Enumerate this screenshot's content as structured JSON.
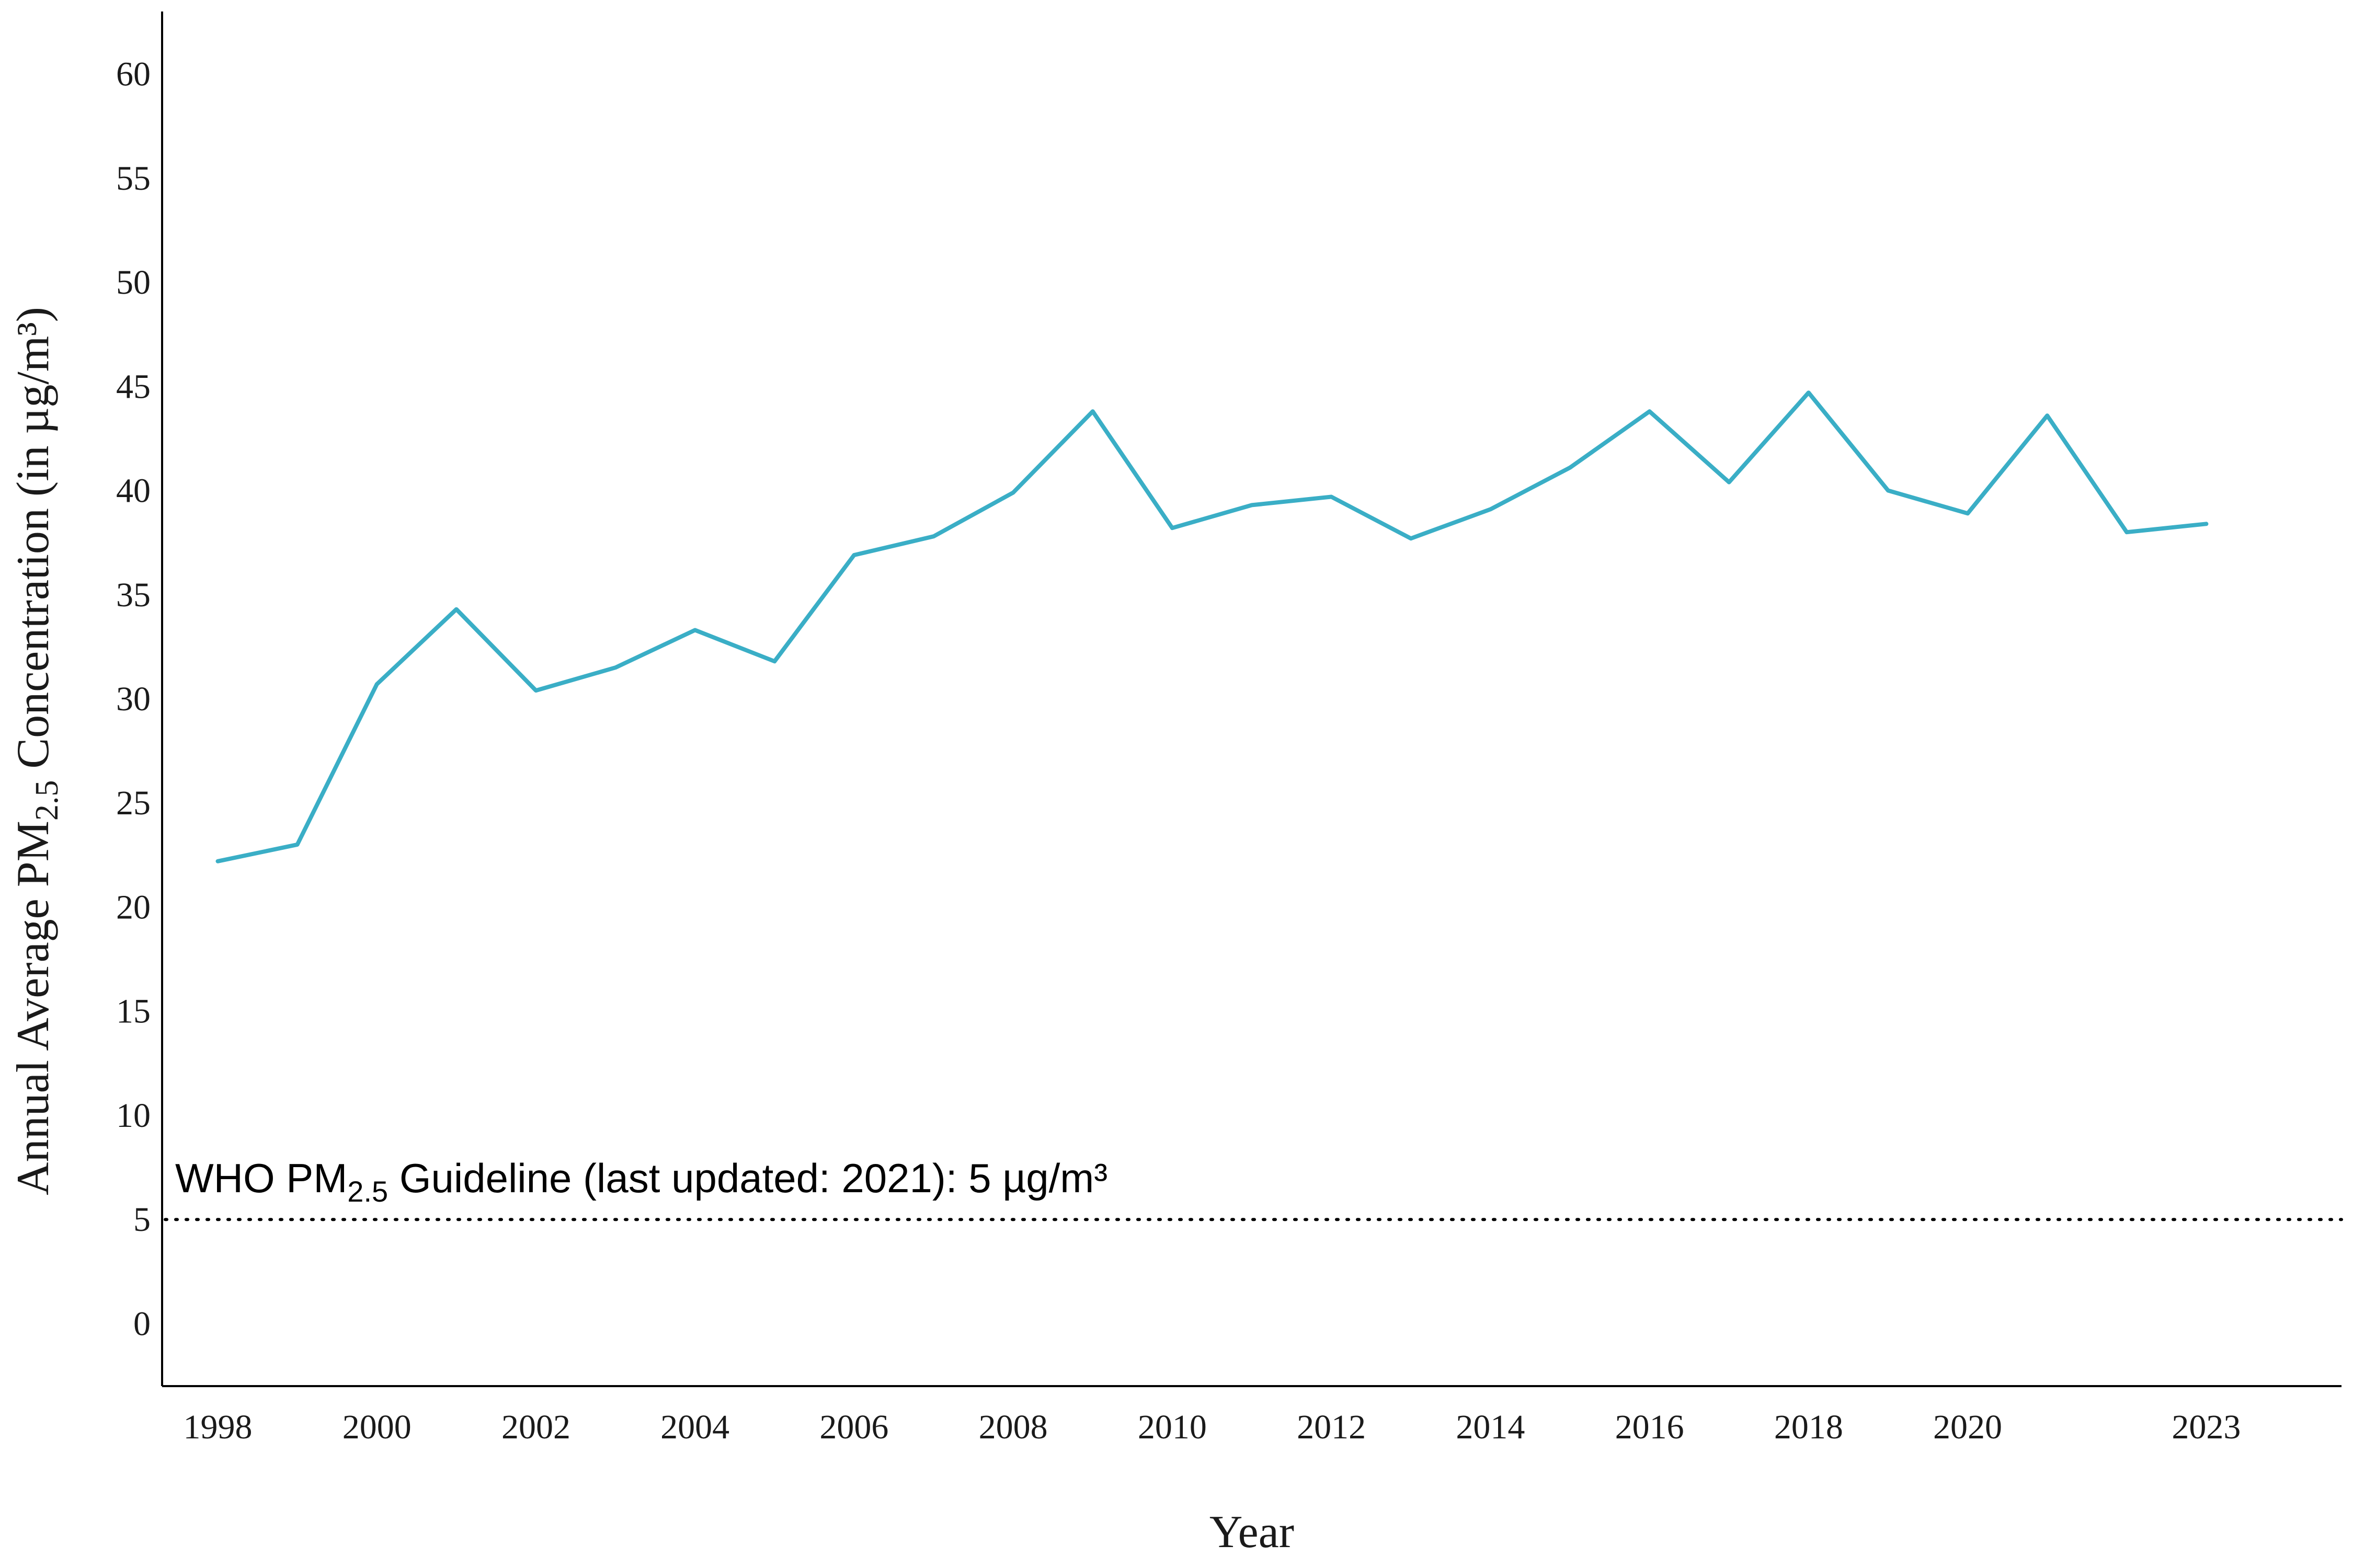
{
  "chart_data": {
    "type": "line",
    "xlabel": "Year",
    "ylabel": {
      "prefix": "Annual Average PM",
      "subscript": "2.5",
      "suffix": " Concentration (in µg/m³)"
    },
    "x_ticks": [
      "1998",
      "2000",
      "2002",
      "2004",
      "2006",
      "2008",
      "2010",
      "2012",
      "2014",
      "2016",
      "2018",
      "2020",
      "2023"
    ],
    "y_ticks": [
      "0",
      "5",
      "10",
      "15",
      "20",
      "25",
      "30",
      "35",
      "40",
      "45",
      "50",
      "55",
      "60"
    ],
    "xlim": [
      1997.3,
      2024.7
    ],
    "ylim": [
      -3,
      63
    ],
    "grid": false,
    "series": [
      {
        "color": "#3aaec6",
        "x": [
          1998,
          1999,
          2000,
          2001,
          2002,
          2003,
          2004,
          2005,
          2006,
          2007,
          2008,
          2009,
          2010,
          2011,
          2012,
          2013,
          2014,
          2015,
          2016,
          2017,
          2018,
          2019,
          2020,
          2021,
          2022,
          2023
        ],
        "y": [
          22.2,
          23.0,
          30.7,
          34.3,
          30.4,
          31.5,
          33.3,
          31.8,
          36.9,
          37.8,
          39.9,
          43.8,
          38.2,
          39.3,
          39.7,
          37.7,
          39.1,
          41.1,
          43.8,
          40.4,
          44.7,
          40.0,
          38.9,
          43.6,
          38.0,
          38.4
        ]
      }
    ],
    "reference_line": {
      "y": 5,
      "style": "dotted",
      "color": "#000000",
      "label": {
        "prefix": "WHO PM",
        "subscript": "2.5",
        "suffix": " Guideline (last updated: 2021): 5 µg/m³"
      }
    }
  }
}
